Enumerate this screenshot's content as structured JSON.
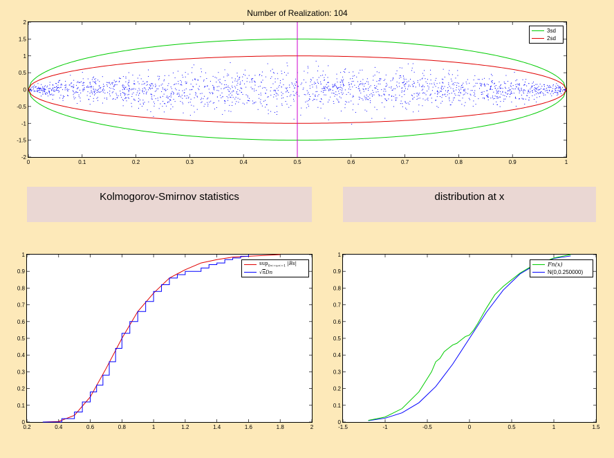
{
  "title": "Number of Realization: 104",
  "panels": {
    "ks_label": "Kolmogorov-Smirnov statistics",
    "dist_label": "distribution at x"
  },
  "colors": {
    "background": "#fde9b9",
    "panel": "#ead7d3",
    "green": "#00cc00",
    "red": "#e00000",
    "blue": "#0000ff",
    "magenta": "#cc00cc"
  },
  "chart_data": [
    {
      "type": "scatter",
      "title": "Number of Realization: 104",
      "xlim": [
        0,
        1
      ],
      "ylim": [
        -2,
        2
      ],
      "xticks": [
        0,
        0.1,
        0.2,
        0.3,
        0.4,
        0.5,
        0.6,
        0.7,
        0.8,
        0.9,
        1
      ],
      "yticks": [
        -2,
        -1.5,
        -1,
        -0.5,
        0,
        0.5,
        1,
        1.5,
        2
      ],
      "series": [
        {
          "name": "3sd",
          "color": "#00cc00",
          "amplitude": 1.5
        },
        {
          "name": "2sd",
          "color": "#e00000",
          "amplitude": 1.0
        }
      ],
      "vertical_line_x": 0.5,
      "realizations": 104,
      "legend_position": "top-right"
    },
    {
      "type": "line",
      "xlim": [
        0.2,
        2
      ],
      "ylim": [
        0,
        1
      ],
      "xticks": [
        0.2,
        0.4,
        0.6,
        0.8,
        1,
        1.2,
        1.4,
        1.6,
        1.8,
        2
      ],
      "yticks": [
        0,
        0.1,
        0.2,
        0.3,
        0.4,
        0.5,
        0.6,
        0.7,
        0.8,
        0.9,
        1
      ],
      "legend_position": "top-right",
      "series": [
        {
          "name": "sup_{0<=s<=1}|Bs|",
          "color": "#e00000",
          "x": [
            0.3,
            0.4,
            0.5,
            0.6,
            0.7,
            0.8,
            0.9,
            1.0,
            1.1,
            1.2,
            1.3,
            1.4,
            1.5,
            1.6,
            1.7,
            1.8
          ],
          "y": [
            0.0,
            0.003,
            0.04,
            0.15,
            0.32,
            0.5,
            0.66,
            0.77,
            0.86,
            0.91,
            0.95,
            0.97,
            0.985,
            0.99,
            0.995,
            1.0
          ]
        },
        {
          "name": "√n Dn",
          "color": "#0000ff",
          "x": [
            0.3,
            0.38,
            0.42,
            0.5,
            0.55,
            0.6,
            0.64,
            0.68,
            0.72,
            0.76,
            0.8,
            0.85,
            0.9,
            0.95,
            1.0,
            1.05,
            1.1,
            1.15,
            1.2,
            1.3,
            1.35,
            1.4,
            1.45,
            1.5,
            1.55,
            1.6
          ],
          "y": [
            0.0,
            0.0,
            0.02,
            0.06,
            0.12,
            0.18,
            0.22,
            0.28,
            0.36,
            0.44,
            0.53,
            0.6,
            0.66,
            0.72,
            0.78,
            0.82,
            0.86,
            0.88,
            0.9,
            0.92,
            0.94,
            0.95,
            0.97,
            0.98,
            0.99,
            1.0
          ]
        }
      ]
    },
    {
      "type": "line",
      "xlim": [
        -1.5,
        1.5
      ],
      "ylim": [
        0,
        1
      ],
      "xticks": [
        -1.5,
        -1,
        -0.5,
        0,
        0.5,
        1,
        1.5
      ],
      "yticks": [
        0,
        0.1,
        0.2,
        0.3,
        0.4,
        0.5,
        0.6,
        0.7,
        0.8,
        0.9,
        1
      ],
      "legend_position": "top-right",
      "series": [
        {
          "name": "Fn(x)",
          "color": "#00cc00",
          "x": [
            -1.2,
            -1.0,
            -0.8,
            -0.6,
            -0.5,
            -0.45,
            -0.4,
            -0.35,
            -0.3,
            -0.25,
            -0.2,
            -0.15,
            -0.1,
            -0.05,
            0.0,
            0.05,
            0.1,
            0.2,
            0.3,
            0.4,
            0.5,
            0.6,
            0.7,
            0.8,
            0.9,
            1.0,
            1.1,
            1.2
          ],
          "y": [
            0.01,
            0.03,
            0.08,
            0.18,
            0.26,
            0.3,
            0.36,
            0.38,
            0.42,
            0.44,
            0.46,
            0.47,
            0.49,
            0.51,
            0.52,
            0.55,
            0.59,
            0.68,
            0.76,
            0.81,
            0.85,
            0.89,
            0.92,
            0.94,
            0.96,
            0.98,
            0.99,
            1.0
          ]
        },
        {
          "name": "N(0,0.250000)",
          "color": "#0000ff",
          "x": [
            -1.2,
            -1.0,
            -0.8,
            -0.6,
            -0.4,
            -0.2,
            0.0,
            0.2,
            0.4,
            0.6,
            0.8,
            1.0,
            1.2
          ],
          "y": [
            0.008,
            0.023,
            0.055,
            0.115,
            0.212,
            0.345,
            0.5,
            0.655,
            0.788,
            0.885,
            0.945,
            0.977,
            0.992
          ]
        }
      ]
    }
  ]
}
